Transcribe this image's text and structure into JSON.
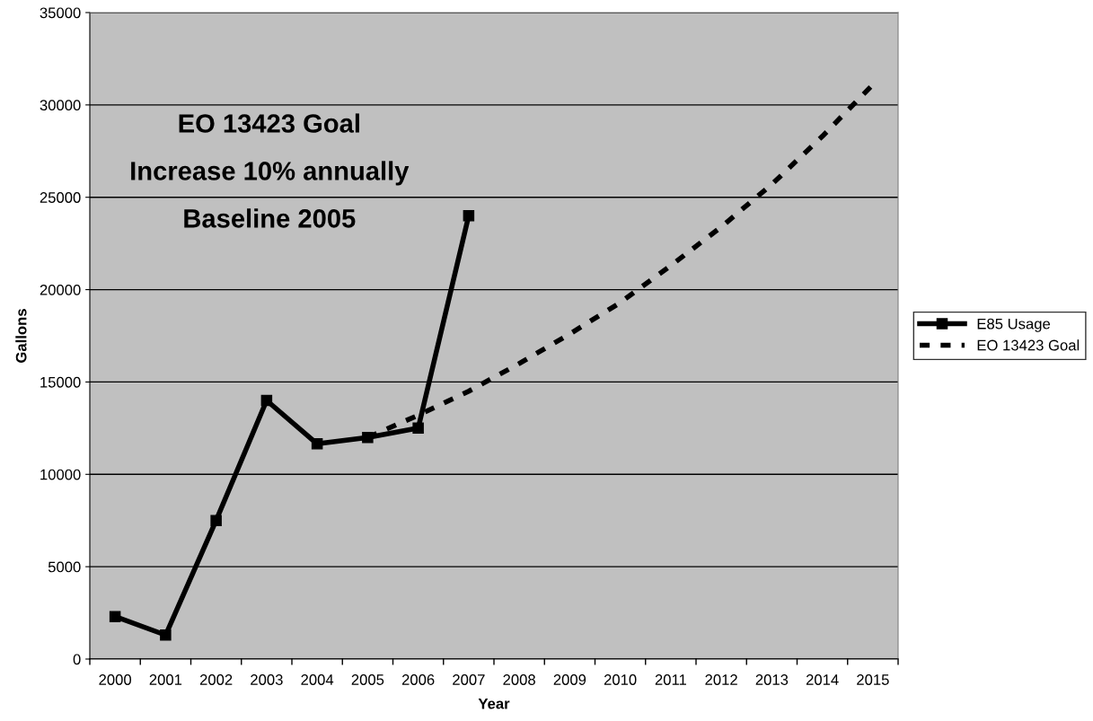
{
  "chart_data": {
    "type": "line",
    "xlabel": "Year",
    "ylabel": "Gallons",
    "categories": [
      "2000",
      "2001",
      "2002",
      "2003",
      "2004",
      "2005",
      "2006",
      "2007",
      "2008",
      "2009",
      "2010",
      "2011",
      "2012",
      "2013",
      "2014",
      "2015"
    ],
    "series": [
      {
        "name": "E85 Usage",
        "color": "#000000",
        "marker": "square",
        "line_style": "solid",
        "values": [
          2300,
          1300,
          7500,
          14000,
          11650,
          12000,
          12500,
          24000,
          null,
          null,
          null,
          null,
          null,
          null,
          null,
          null
        ]
      },
      {
        "name": "EO 13423 Goal",
        "color": "#000000",
        "marker": "none",
        "line_style": "dashed",
        "values": [
          null,
          null,
          null,
          null,
          null,
          12000,
          13200,
          14500,
          16000,
          17600,
          19300,
          21300,
          23400,
          25700,
          28300,
          31100
        ]
      }
    ],
    "ylim": [
      0,
      35000
    ],
    "yticks": [
      0,
      5000,
      10000,
      15000,
      20000,
      25000,
      30000,
      35000
    ],
    "grid": "y",
    "legend": "right",
    "annotations": [
      "EO 13423 Goal",
      "Increase 10% annually",
      "Baseline 2005"
    ]
  }
}
